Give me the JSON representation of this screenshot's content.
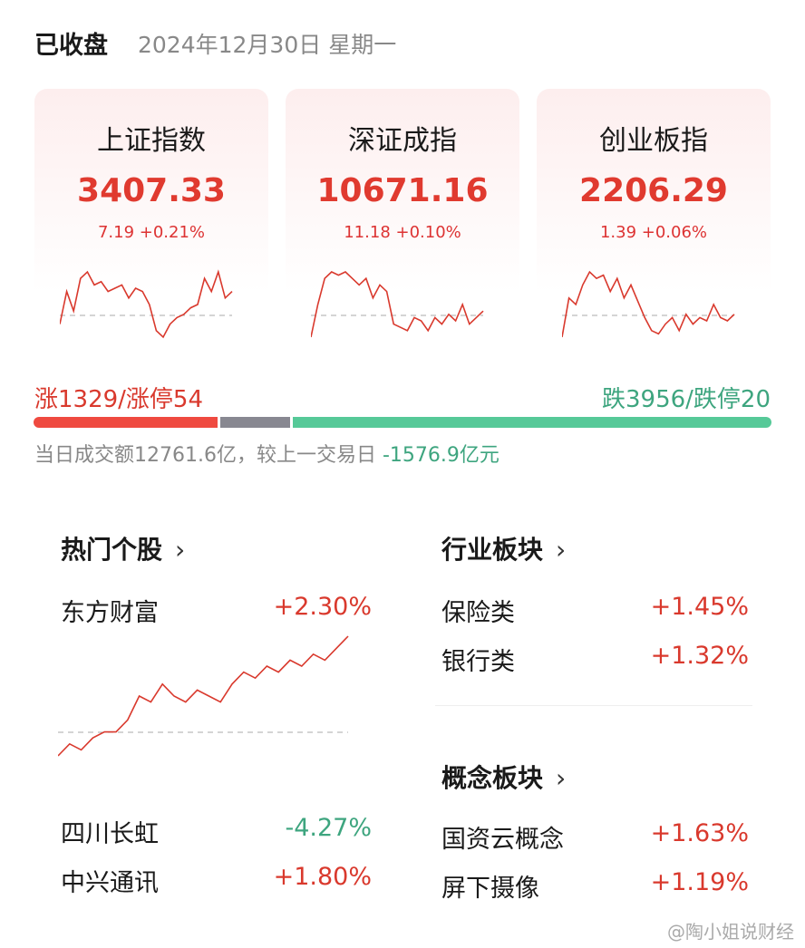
{
  "header": {
    "status": "已收盘",
    "date": "2024年12月30日 星期一"
  },
  "indices": [
    {
      "name": "上证指数",
      "value": "3407.33",
      "change": "7.19 +0.21%",
      "trend": [
        0.2,
        0.7,
        0.4,
        0.9,
        1,
        0.8,
        0.85,
        0.7,
        0.75,
        0.8,
        0.6,
        0.75,
        0.7,
        0.5,
        0.1,
        0,
        0.2,
        0.3,
        0.35,
        0.45,
        0.5,
        0.9,
        0.7,
        1,
        0.6,
        0.7
      ]
    },
    {
      "name": "深证成指",
      "value": "10671.16",
      "change": "11.18 +0.10%",
      "trend": [
        0,
        0.5,
        0.9,
        1,
        0.95,
        1,
        0.9,
        0.8,
        0.9,
        0.6,
        0.8,
        0.7,
        0.2,
        0.15,
        0.1,
        0.3,
        0.25,
        0.1,
        0.3,
        0.2,
        0.35,
        0.25,
        0.5,
        0.2,
        0.3,
        0.4
      ]
    },
    {
      "name": "创业板指",
      "value": "2206.29",
      "change": "1.39 +0.06%",
      "trend": [
        0,
        0.6,
        0.5,
        0.8,
        1,
        0.9,
        0.95,
        0.7,
        0.9,
        0.6,
        0.8,
        0.55,
        0.3,
        0.1,
        0.05,
        0.2,
        0.3,
        0.1,
        0.35,
        0.2,
        0.3,
        0.25,
        0.5,
        0.3,
        0.25,
        0.35
      ]
    }
  ],
  "breadth": {
    "up": "涨1329/涨停54",
    "down": "跌3956/跌停20",
    "up_count": 1329,
    "down_count": 3956,
    "flat_ratio": 0.1
  },
  "turnover": {
    "text": "当日成交额12761.6亿，较上一交易日 ",
    "delta": "-1576.9亿元"
  },
  "hot_stocks": {
    "title": "热门个股",
    "chevron": "›",
    "items": [
      {
        "name": "东方财富",
        "change": "+2.30%",
        "dir": "up"
      },
      {
        "name": "四川长虹",
        "change": "-4.27%",
        "dir": "down"
      },
      {
        "name": "中兴通讯",
        "change": "+1.80%",
        "dir": "up"
      }
    ],
    "trend": [
      0,
      0.1,
      0.05,
      0.15,
      0.2,
      0.2,
      0.3,
      0.5,
      0.45,
      0.6,
      0.5,
      0.45,
      0.55,
      0.5,
      0.45,
      0.6,
      0.7,
      0.65,
      0.75,
      0.7,
      0.8,
      0.75,
      0.85,
      0.8,
      0.9,
      1
    ]
  },
  "industry": {
    "title": "行业板块",
    "chevron": "›",
    "items": [
      {
        "name": "保险类",
        "change": "+1.45%"
      },
      {
        "name": "银行类",
        "change": "+1.32%"
      }
    ]
  },
  "concept": {
    "title": "概念板块",
    "chevron": "›",
    "items": [
      {
        "name": "国资云概念",
        "change": "+1.63%"
      },
      {
        "name": "屏下摄像",
        "change": "+1.19%"
      }
    ]
  },
  "watermark": "@陶小姐说财经",
  "colors": {
    "up": "#d9392d",
    "down": "#3ea57f",
    "flat": "#888891"
  }
}
